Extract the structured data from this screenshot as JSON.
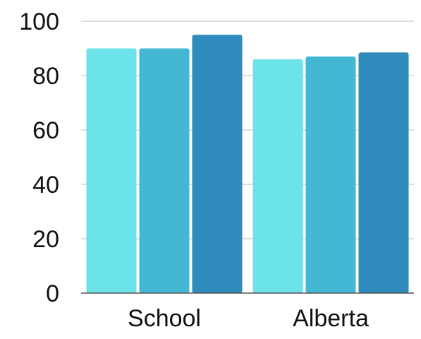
{
  "chart_data": {
    "type": "bar",
    "categories": [
      "School",
      "Alberta"
    ],
    "series": [
      {
        "color": "#6BE3E8",
        "values": [
          90,
          86
        ]
      },
      {
        "color": "#44B7D5",
        "values": [
          90,
          87
        ]
      },
      {
        "color": "#2E8BBB",
        "values": [
          95,
          88.5
        ]
      }
    ],
    "title": "",
    "xlabel": "",
    "ylabel": "",
    "ylim": [
      0,
      100
    ],
    "yticks": [
      "0",
      "20",
      "40",
      "60",
      "80",
      "100"
    ],
    "grid": true,
    "legend": "none",
    "colors": {
      "grid": "#C9C9C9",
      "axis": "#555555",
      "text": "#111111"
    }
  }
}
